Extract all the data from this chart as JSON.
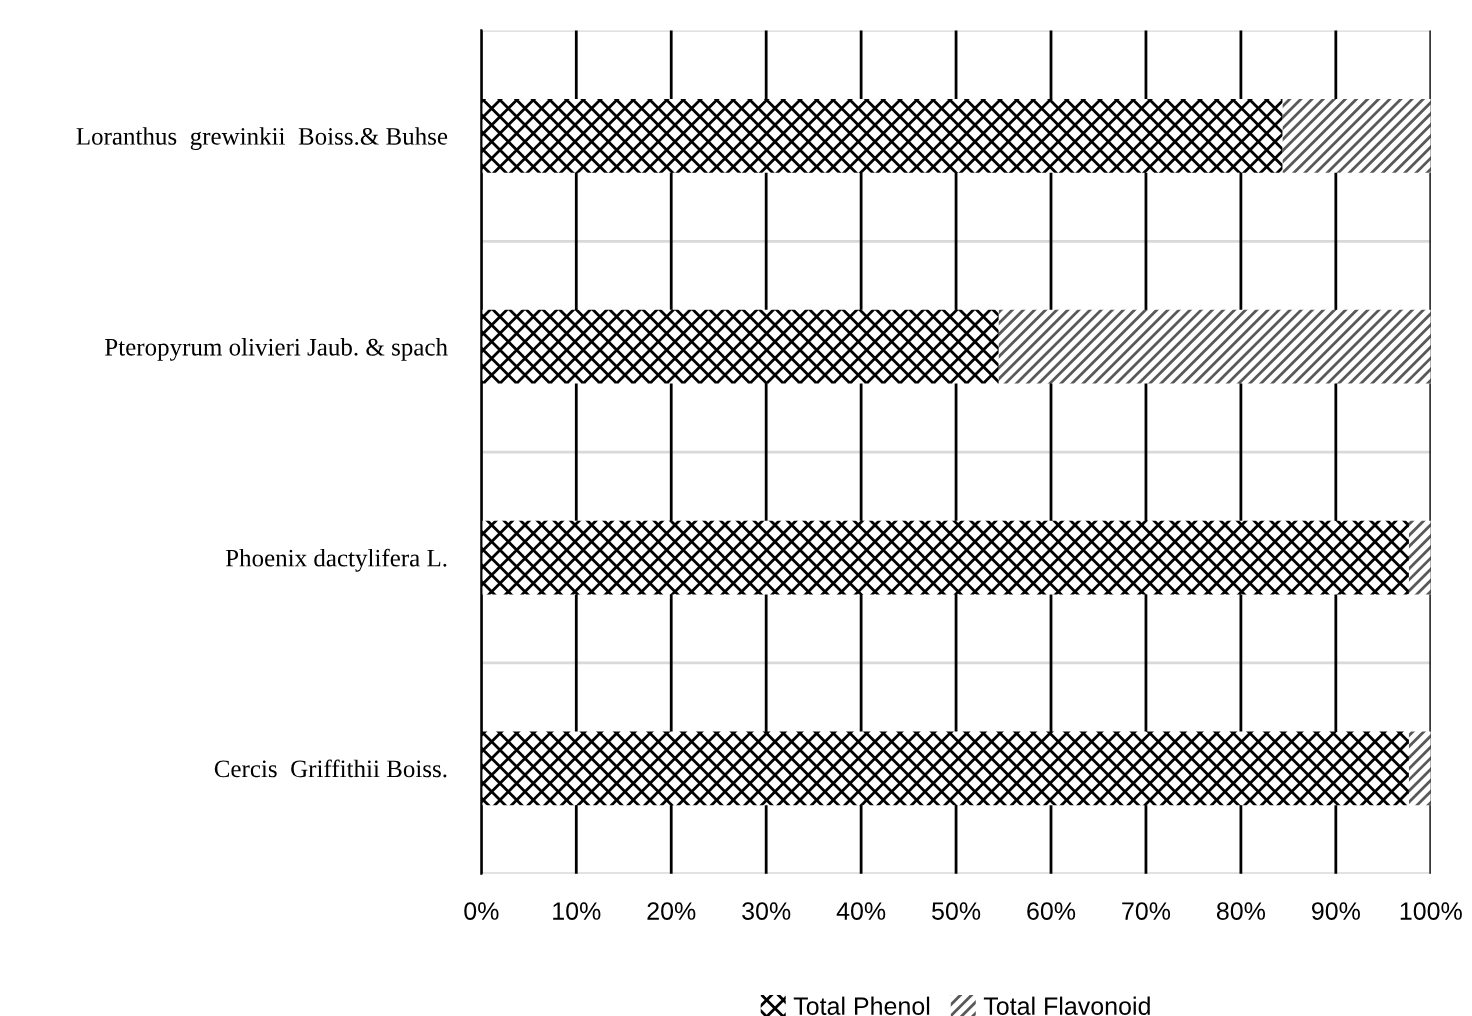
{
  "chart_data": {
    "type": "bar",
    "orientation": "horizontal",
    "stacked": true,
    "categories": [
      "Loranthus  grewinkii  Boiss.& Buhse",
      "Pteropyrum olivieri Jaub. & spach",
      "Phoenix dactylifera L.",
      "Cercis  Griffithii Boiss."
    ],
    "series": [
      {
        "name": "Total Phenol",
        "color": "#000000",
        "values": [
          84.4,
          54.5,
          97.7,
          97.7
        ]
      },
      {
        "name": "Total Flavonoid",
        "color": "#595959",
        "values": [
          15.6,
          45.5,
          2.3,
          2.3
        ]
      }
    ],
    "xlim": [
      0,
      100
    ],
    "xticks": [
      {
        "value": 0,
        "label": "0%"
      },
      {
        "value": 10,
        "label": "10%"
      },
      {
        "value": 20,
        "label": "20%"
      },
      {
        "value": 30,
        "label": "30%"
      },
      {
        "value": 40,
        "label": "40%"
      },
      {
        "value": 50,
        "label": "50%"
      },
      {
        "value": 60,
        "label": "60%"
      },
      {
        "value": 70,
        "label": "70%"
      },
      {
        "value": 80,
        "label": "80%"
      },
      {
        "value": 90,
        "label": "90%"
      },
      {
        "value": 100,
        "label": "100%"
      }
    ],
    "grid": true,
    "legend": "bottom"
  }
}
